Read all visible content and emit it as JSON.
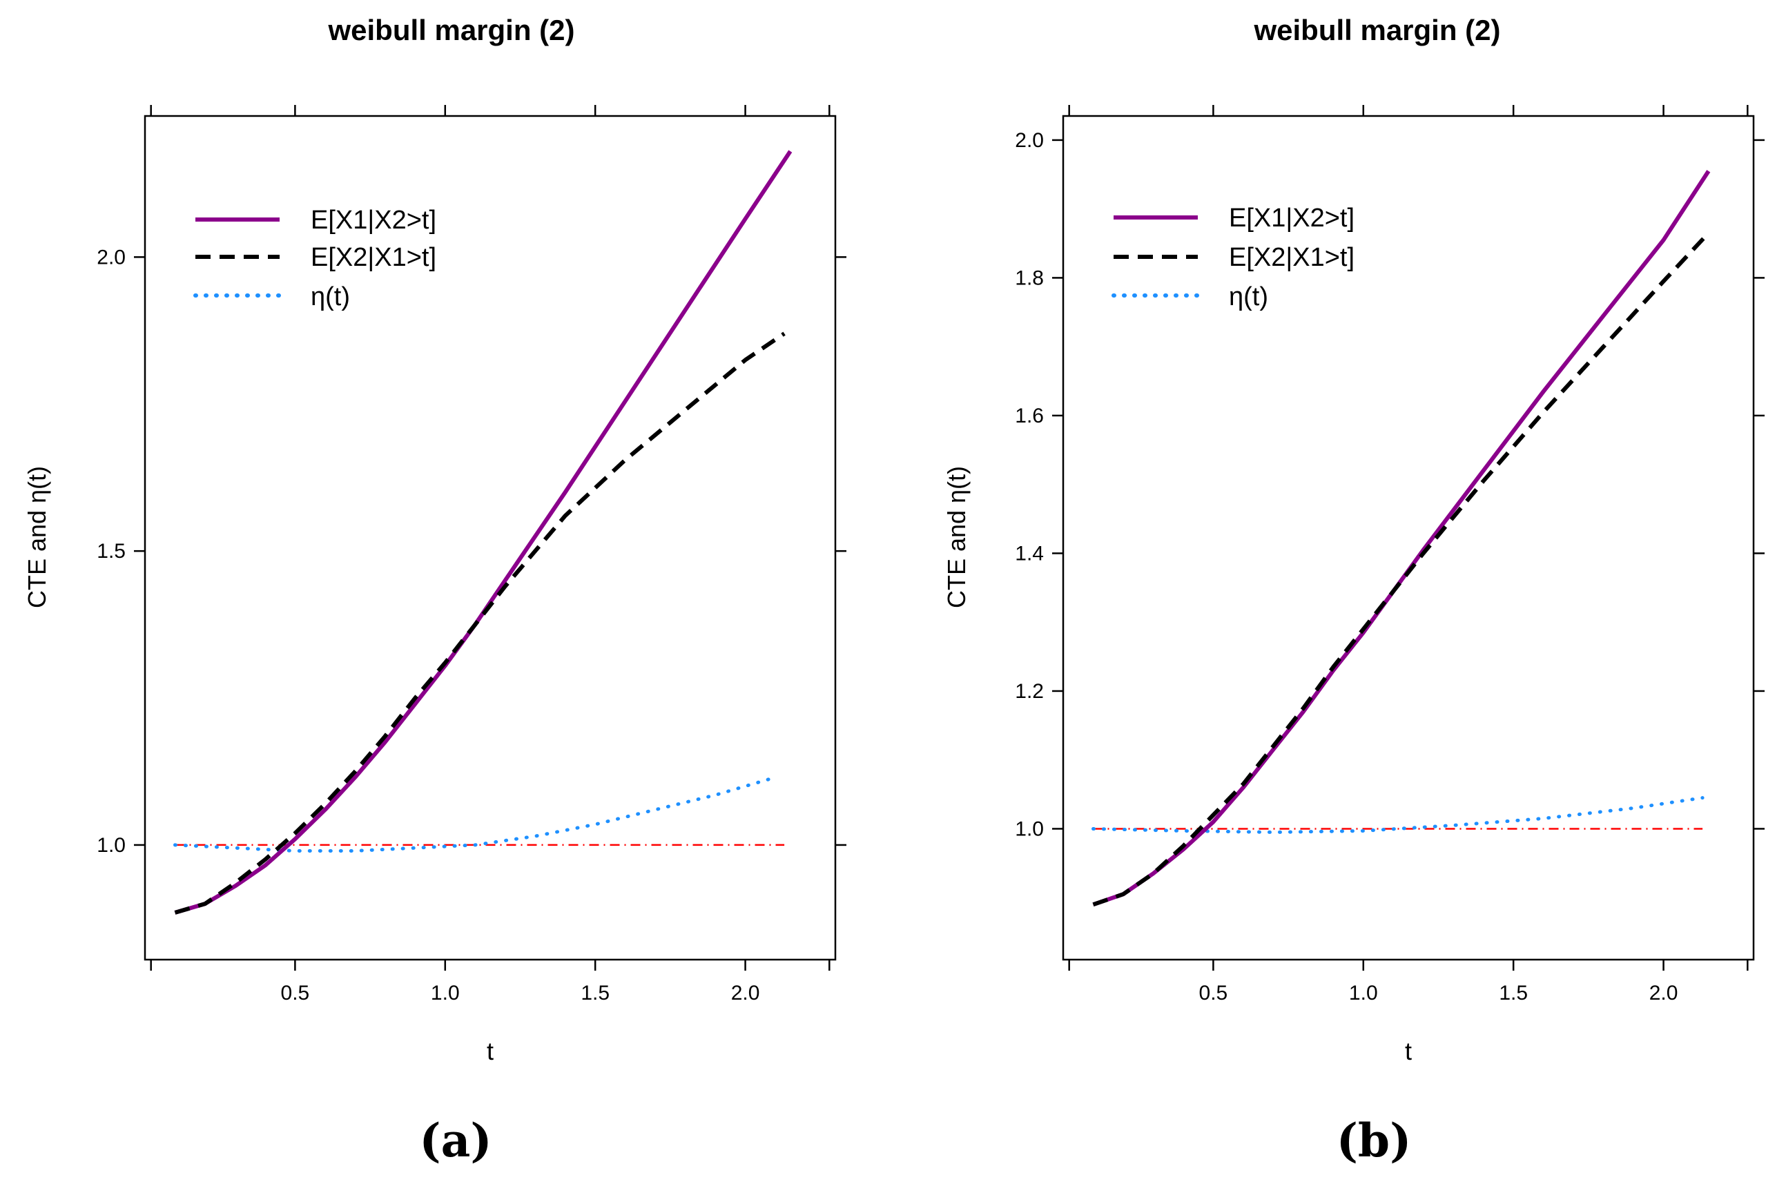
{
  "chart_data": [
    {
      "type": "line",
      "panel_label": "(a)",
      "title": "weibull margin (2)",
      "xlabel": "t",
      "ylabel": "CTE  and   η(t)",
      "xlim": [
        0.0,
        2.3
      ],
      "ylim": [
        0.805,
        2.24
      ],
      "xticks": [
        0.5,
        1.0,
        1.5,
        2.0
      ],
      "xtick_labels": [
        "0.5",
        "1.0",
        "1.5",
        "2.0"
      ],
      "yticks": [
        1.0,
        1.5,
        2.0
      ],
      "ytick_labels": [
        "1.0",
        "1.5",
        "2.0"
      ],
      "legend_position": "top-left",
      "series": [
        {
          "name": "E[X1|X2>t]",
          "color": "#8B008B",
          "style": "solid",
          "x": [
            0.1,
            0.2,
            0.3,
            0.4,
            0.5,
            0.6,
            0.7,
            0.8,
            0.9,
            1.0,
            1.1,
            1.2,
            1.4,
            1.6,
            1.8,
            2.0,
            2.15
          ],
          "values": [
            0.885,
            0.9,
            0.93,
            0.965,
            1.01,
            1.06,
            1.115,
            1.175,
            1.24,
            1.305,
            1.375,
            1.45,
            1.6,
            1.755,
            1.91,
            2.065,
            2.18
          ]
        },
        {
          "name": "E[X2|X1>t]",
          "color": "#000000",
          "style": "dashed",
          "x": [
            0.1,
            0.2,
            0.3,
            0.4,
            0.5,
            0.6,
            0.7,
            0.8,
            0.9,
            1.0,
            1.1,
            1.2,
            1.4,
            1.6,
            1.8,
            2.0,
            2.13
          ],
          "values": [
            0.885,
            0.9,
            0.935,
            0.975,
            1.02,
            1.07,
            1.125,
            1.185,
            1.25,
            1.31,
            1.375,
            1.44,
            1.56,
            1.655,
            1.74,
            1.825,
            1.87
          ]
        },
        {
          "name": "η(t)",
          "color": "#1E90FF",
          "style": "dotted",
          "x": [
            0.1,
            0.3,
            0.5,
            0.7,
            0.9,
            1.1,
            1.3,
            1.5,
            1.7,
            1.9,
            2.1
          ],
          "values": [
            1.0,
            0.995,
            0.99,
            0.99,
            0.995,
            1.0,
            1.015,
            1.035,
            1.06,
            1.085,
            1.115
          ]
        },
        {
          "name": "reference",
          "color": "#FF0000",
          "style": "dashdot",
          "x": [
            0.1,
            2.13
          ],
          "values": [
            1.0,
            1.0
          ]
        }
      ]
    },
    {
      "type": "line",
      "panel_label": "(b)",
      "title": "weibull margin (2)",
      "xlabel": "t",
      "ylabel": "CTE  and   η(t)",
      "xlim": [
        0.0,
        2.3
      ],
      "ylim": [
        0.81,
        2.035
      ],
      "xticks": [
        0.5,
        1.0,
        1.5,
        2.0
      ],
      "xtick_labels": [
        "0.5",
        "1.0",
        "1.5",
        "2.0"
      ],
      "yticks": [
        1.0,
        1.2,
        1.4,
        1.6,
        1.8,
        2.0
      ],
      "ytick_labels": [
        "1.0",
        "1.2",
        "1.4",
        "1.6",
        "1.8",
        "2.0"
      ],
      "legend_position": "top-left",
      "series": [
        {
          "name": "E[X1|X2>t]",
          "color": "#8B008B",
          "style": "solid",
          "x": [
            0.1,
            0.2,
            0.3,
            0.4,
            0.5,
            0.6,
            0.7,
            0.8,
            0.9,
            1.0,
            1.1,
            1.2,
            1.4,
            1.6,
            1.8,
            2.0,
            2.15
          ],
          "values": [
            0.89,
            0.905,
            0.935,
            0.97,
            1.01,
            1.06,
            1.115,
            1.17,
            1.23,
            1.285,
            1.345,
            1.405,
            1.52,
            1.635,
            1.745,
            1.855,
            1.955
          ]
        },
        {
          "name": "E[X2|X1>t]",
          "color": "#000000",
          "style": "dashed",
          "x": [
            0.1,
            0.2,
            0.3,
            0.4,
            0.5,
            0.6,
            0.7,
            0.8,
            0.9,
            1.0,
            1.1,
            1.2,
            1.4,
            1.6,
            1.8,
            2.0,
            2.15
          ],
          "values": [
            0.89,
            0.905,
            0.935,
            0.975,
            1.02,
            1.065,
            1.12,
            1.175,
            1.235,
            1.29,
            1.345,
            1.4,
            1.505,
            1.605,
            1.7,
            1.795,
            1.865
          ]
        },
        {
          "name": "η(t)",
          "color": "#1E90FF",
          "style": "dotted",
          "x": [
            0.1,
            0.4,
            0.7,
            1.0,
            1.3,
            1.6,
            1.9,
            2.13
          ],
          "values": [
            1.0,
            0.997,
            0.995,
            0.997,
            1.005,
            1.015,
            1.03,
            1.045
          ]
        },
        {
          "name": "reference",
          "color": "#FF0000",
          "style": "dashdot",
          "x": [
            0.1,
            2.13
          ],
          "values": [
            1.0,
            1.0
          ]
        }
      ]
    }
  ]
}
